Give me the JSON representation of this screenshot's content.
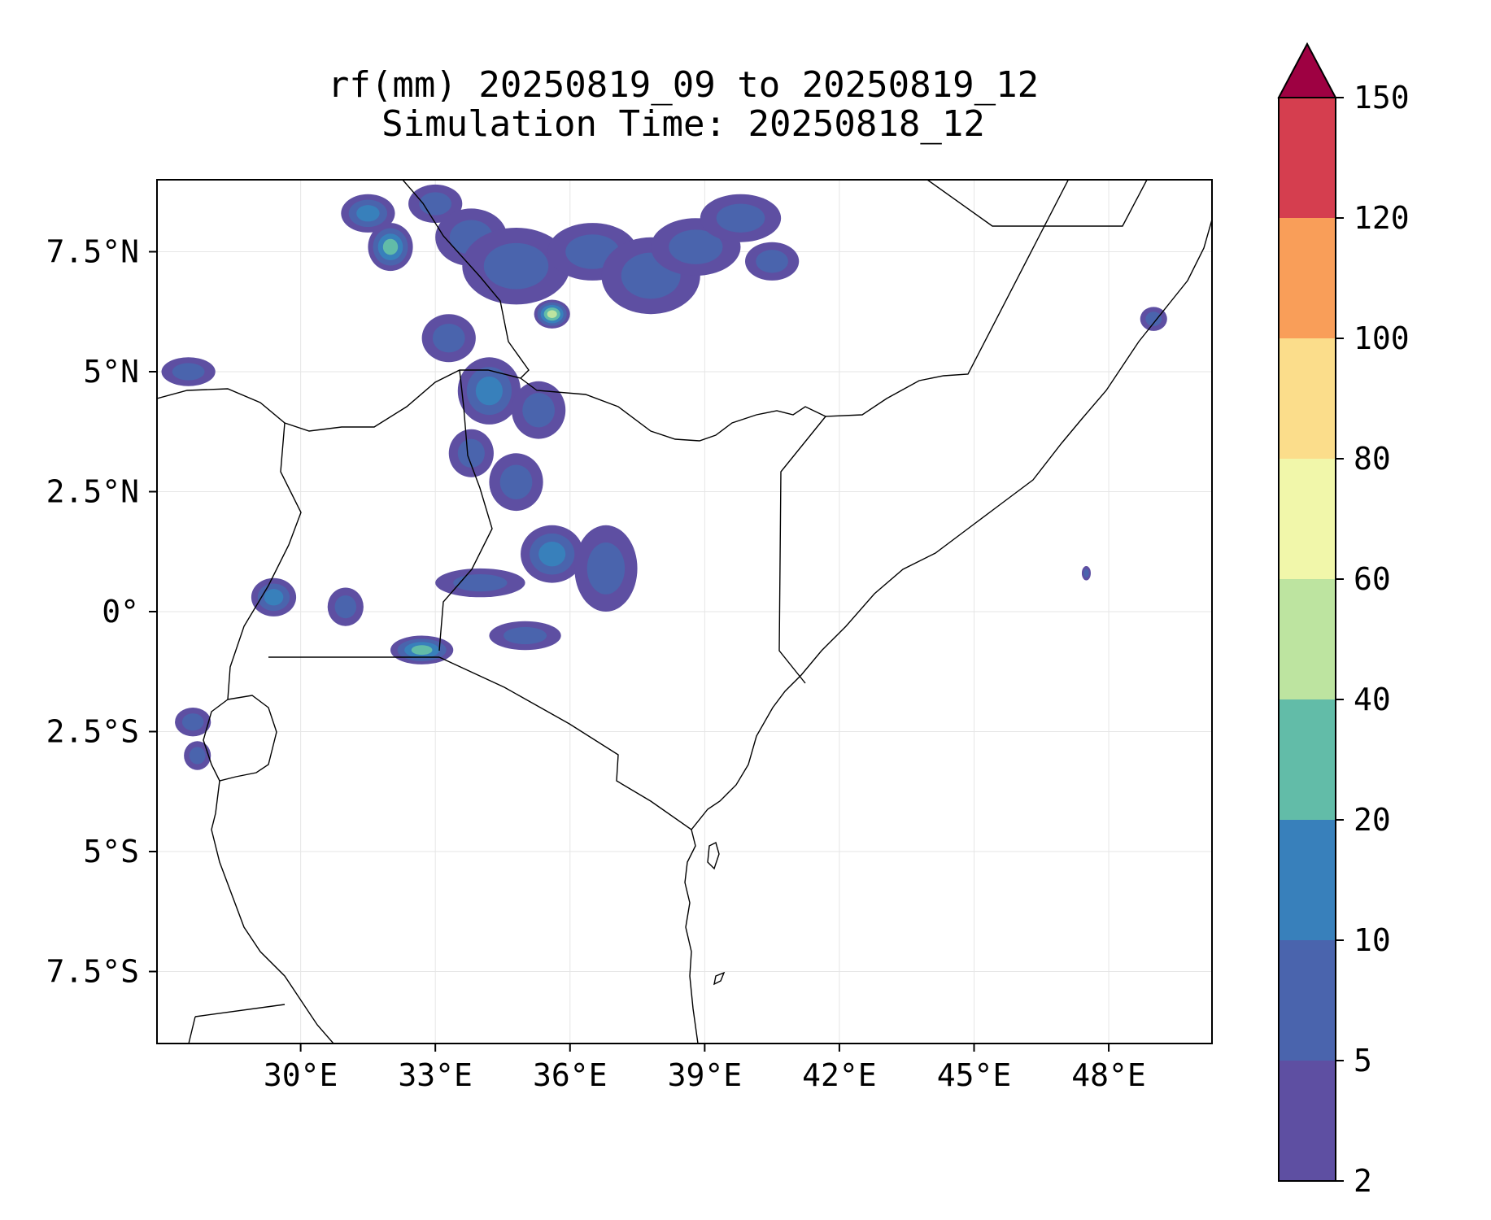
{
  "title": {
    "line1": "rf(mm) 20250819_09 to 20250819_12",
    "line2": "Simulation Time: 20250818_12"
  },
  "map": {
    "lon_range": [
      26.8,
      50.3
    ],
    "lat_range": [
      -9.0,
      9.0
    ],
    "x_ticks": [
      {
        "value": 30,
        "label": "30°E"
      },
      {
        "value": 33,
        "label": "33°E"
      },
      {
        "value": 36,
        "label": "36°E"
      },
      {
        "value": 39,
        "label": "39°E"
      },
      {
        "value": 42,
        "label": "42°E"
      },
      {
        "value": 45,
        "label": "45°E"
      },
      {
        "value": 48,
        "label": "48°E"
      }
    ],
    "y_ticks": [
      {
        "value": 7.5,
        "label": "7.5°N"
      },
      {
        "value": 5,
        "label": "5°N"
      },
      {
        "value": 2.5,
        "label": "2.5°N"
      },
      {
        "value": 0,
        "label": "0°"
      },
      {
        "value": -2.5,
        "label": "2.5°S"
      },
      {
        "value": -5,
        "label": "5°S"
      },
      {
        "value": -7.5,
        "label": "7.5°S"
      }
    ],
    "grid": true
  },
  "colorbar": {
    "levels": [
      {
        "value": 2,
        "label": "2"
      },
      {
        "value": 5,
        "label": "5"
      },
      {
        "value": 10,
        "label": "10"
      },
      {
        "value": 20,
        "label": "20"
      },
      {
        "value": 40,
        "label": "40"
      },
      {
        "value": 60,
        "label": "60"
      },
      {
        "value": 80,
        "label": "80"
      },
      {
        "value": 100,
        "label": "100"
      },
      {
        "value": 120,
        "label": "120"
      },
      {
        "value": 150,
        "label": "150"
      }
    ],
    "colors": [
      "#5e4fa2",
      "#4a64ad",
      "#3880bb",
      "#62bca8",
      "#bde4a0",
      "#f1f7aa",
      "#fbdd8b",
      "#f99e59",
      "#d53e4f"
    ],
    "extend_color": "#9e0142",
    "extend": "max"
  },
  "rain_cells": [
    {
      "lon": 31.5,
      "lat": 8.3,
      "rx": 0.6,
      "ry": 0.4,
      "level": 2
    },
    {
      "lon": 32.0,
      "lat": 7.6,
      "rx": 0.5,
      "ry": 0.5,
      "level": 3
    },
    {
      "lon": 33.0,
      "lat": 8.5,
      "rx": 0.6,
      "ry": 0.4,
      "level": 1
    },
    {
      "lon": 33.8,
      "lat": 7.8,
      "rx": 0.8,
      "ry": 0.6,
      "level": 1
    },
    {
      "lon": 34.8,
      "lat": 7.2,
      "rx": 1.2,
      "ry": 0.8,
      "level": 1
    },
    {
      "lon": 35.6,
      "lat": 6.2,
      "rx": 0.4,
      "ry": 0.3,
      "level": 4
    },
    {
      "lon": 36.5,
      "lat": 7.5,
      "rx": 1.0,
      "ry": 0.6,
      "level": 1
    },
    {
      "lon": 37.8,
      "lat": 7.0,
      "rx": 1.1,
      "ry": 0.8,
      "level": 1
    },
    {
      "lon": 38.8,
      "lat": 7.6,
      "rx": 1.0,
      "ry": 0.6,
      "level": 1
    },
    {
      "lon": 39.8,
      "lat": 8.2,
      "rx": 0.9,
      "ry": 0.5,
      "level": 1
    },
    {
      "lon": 40.5,
      "lat": 7.3,
      "rx": 0.6,
      "ry": 0.4,
      "level": 1
    },
    {
      "lon": 33.3,
      "lat": 5.7,
      "rx": 0.6,
      "ry": 0.5,
      "level": 1
    },
    {
      "lon": 34.2,
      "lat": 4.6,
      "rx": 0.7,
      "ry": 0.7,
      "level": 2
    },
    {
      "lon": 35.3,
      "lat": 4.2,
      "rx": 0.6,
      "ry": 0.6,
      "level": 1
    },
    {
      "lon": 33.8,
      "lat": 3.3,
      "rx": 0.5,
      "ry": 0.5,
      "level": 1
    },
    {
      "lon": 34.8,
      "lat": 2.7,
      "rx": 0.6,
      "ry": 0.6,
      "level": 1
    },
    {
      "lon": 35.6,
      "lat": 1.2,
      "rx": 0.7,
      "ry": 0.6,
      "level": 2
    },
    {
      "lon": 36.8,
      "lat": 0.9,
      "rx": 0.7,
      "ry": 0.9,
      "level": 1
    },
    {
      "lon": 34.0,
      "lat": 0.6,
      "rx": 1.0,
      "ry": 0.3,
      "level": 1
    },
    {
      "lon": 32.7,
      "lat": -0.8,
      "rx": 0.7,
      "ry": 0.3,
      "level": 3
    },
    {
      "lon": 35.0,
      "lat": -0.5,
      "rx": 0.8,
      "ry": 0.3,
      "level": 1
    },
    {
      "lon": 27.5,
      "lat": 5.0,
      "rx": 0.6,
      "ry": 0.3,
      "level": 1
    },
    {
      "lon": 29.4,
      "lat": 0.3,
      "rx": 0.5,
      "ry": 0.4,
      "level": 2
    },
    {
      "lon": 31.0,
      "lat": 0.1,
      "rx": 0.4,
      "ry": 0.4,
      "level": 1
    },
    {
      "lon": 27.6,
      "lat": -2.3,
      "rx": 0.4,
      "ry": 0.3,
      "level": 1
    },
    {
      "lon": 27.7,
      "lat": -3.0,
      "rx": 0.3,
      "ry": 0.3,
      "level": 1
    },
    {
      "lon": 49.0,
      "lat": 6.1,
      "rx": 0.3,
      "ry": 0.25,
      "level": 1
    },
    {
      "lon": 47.5,
      "lat": 0.8,
      "rx": 0.1,
      "ry": 0.15,
      "level": 1
    }
  ]
}
